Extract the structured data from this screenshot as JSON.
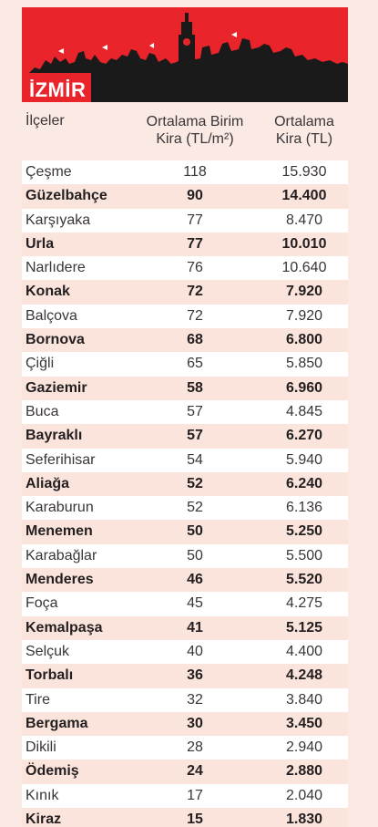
{
  "header": {
    "city": "İZMİR",
    "col_district": "İlçeler",
    "col_unit_line1": "Ortalama Birim",
    "col_unit_line2": "Kira (TL/m²)",
    "col_rent_line1": "Ortalama",
    "col_rent_line2": "Kira (TL)"
  },
  "colors": {
    "banner_red": "#e9242b",
    "skyline_black": "#1a1a1a",
    "row_pink": "#fbe4dc",
    "row_white": "#ffffff"
  },
  "chart_data": {
    "type": "table",
    "title": "İZMİR",
    "columns": [
      "İlçeler",
      "Ortalama Birim Kira (TL/m²)",
      "Ortalama Kira (TL)"
    ],
    "rows": [
      {
        "name": "Çeşme",
        "unit": "118",
        "rent": "15.930"
      },
      {
        "name": "Güzelbahçe",
        "unit": "90",
        "rent": "14.400"
      },
      {
        "name": "Karşıyaka",
        "unit": "77",
        "rent": "8.470"
      },
      {
        "name": "Urla",
        "unit": "77",
        "rent": "10.010"
      },
      {
        "name": "Narlıdere",
        "unit": "76",
        "rent": "10.640"
      },
      {
        "name": "Konak",
        "unit": "72",
        "rent": "7.920"
      },
      {
        "name": "Balçova",
        "unit": "72",
        "rent": "7.920"
      },
      {
        "name": "Bornova",
        "unit": "68",
        "rent": "6.800"
      },
      {
        "name": "Çiğli",
        "unit": "65",
        "rent": "5.850"
      },
      {
        "name": "Gaziemir",
        "unit": "58",
        "rent": "6.960"
      },
      {
        "name": "Buca",
        "unit": "57",
        "rent": "4.845"
      },
      {
        "name": "Bayraklı",
        "unit": "57",
        "rent": "6.270"
      },
      {
        "name": "Seferihisar",
        "unit": "54",
        "rent": "5.940"
      },
      {
        "name": "Aliağa",
        "unit": "52",
        "rent": "6.240"
      },
      {
        "name": "Karaburun",
        "unit": "52",
        "rent": "6.136"
      },
      {
        "name": "Menemen",
        "unit": "50",
        "rent": "5.250"
      },
      {
        "name": "Karabağlar",
        "unit": "50",
        "rent": "5.500"
      },
      {
        "name": "Menderes",
        "unit": "46",
        "rent": "5.520"
      },
      {
        "name": "Foça",
        "unit": "45",
        "rent": "4.275"
      },
      {
        "name": "Kemalpaşa",
        "unit": "41",
        "rent": "5.125"
      },
      {
        "name": "Selçuk",
        "unit": "40",
        "rent": "4.400"
      },
      {
        "name": "Torbalı",
        "unit": "36",
        "rent": "4.248"
      },
      {
        "name": "Tire",
        "unit": "32",
        "rent": "3.840"
      },
      {
        "name": "Bergama",
        "unit": "30",
        "rent": "3.450"
      },
      {
        "name": "Dikili",
        "unit": "28",
        "rent": "2.940"
      },
      {
        "name": "Ödemiş",
        "unit": "24",
        "rent": "2.880"
      },
      {
        "name": "Kınık",
        "unit": "17",
        "rent": "2.040"
      },
      {
        "name": "Kiraz",
        "unit": "15",
        "rent": "1.830"
      }
    ]
  }
}
